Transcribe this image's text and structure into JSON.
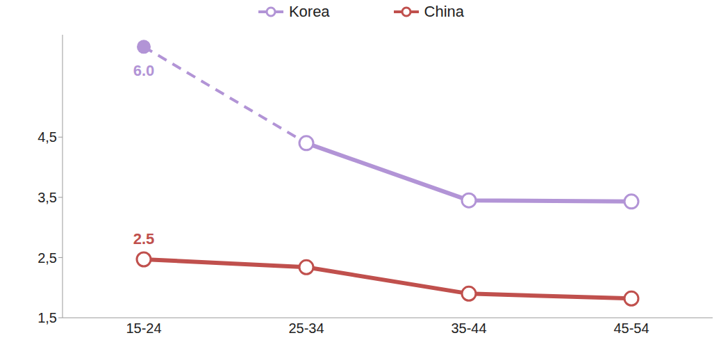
{
  "chart_data": {
    "type": "line",
    "categories": [
      "15-24",
      "25-34",
      "35-44",
      "45-54"
    ],
    "series": [
      {
        "name": "Korea",
        "color": "#b294d6",
        "marker": "circle",
        "values": [
          6.0,
          4.4,
          3.45,
          3.43
        ],
        "value_labels": [
          "6.0",
          null,
          null,
          null
        ]
      },
      {
        "name": "China",
        "color": "#c0504d",
        "marker": "circle",
        "values": [
          2.47,
          2.34,
          1.9,
          1.82
        ],
        "value_labels": [
          "2.5",
          null,
          null,
          null
        ]
      }
    ],
    "ylim": [
      1.5,
      6.2
    ],
    "yticks": [
      {
        "value": 1.5,
        "label": "1,5"
      },
      {
        "value": 2.5,
        "label": "2,5"
      },
      {
        "value": 3.5,
        "label": "3,5"
      },
      {
        "value": 4.5,
        "label": "4,5"
      }
    ],
    "grid": false,
    "legend": "top"
  }
}
